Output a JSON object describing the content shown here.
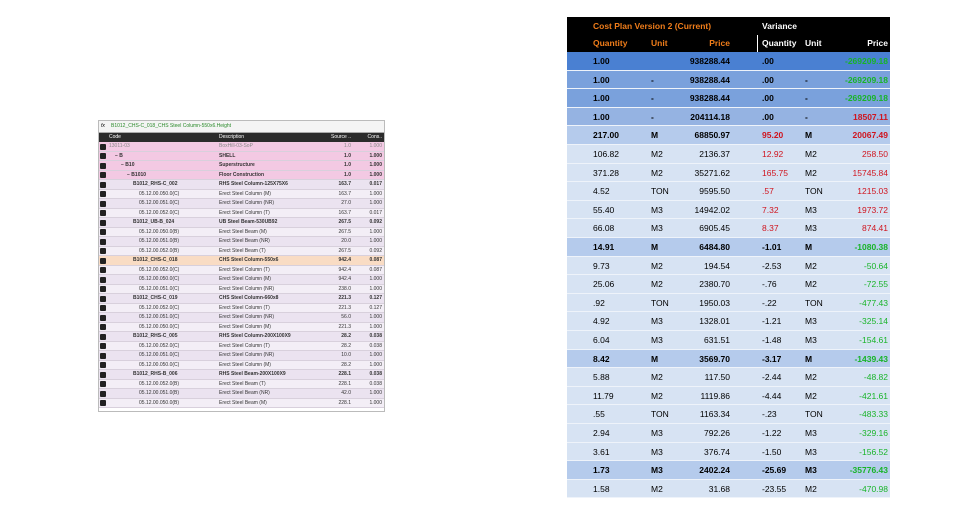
{
  "left_panel": {
    "fx": "fx",
    "formula": "B1012_CHS-C_018_CHS Steel Column-550x6.Height",
    "columns": [
      "Code",
      "Description",
      "Source ..",
      "Cons.."
    ],
    "rows": [
      [
        "13011-03",
        "BoxHill-03-SoP",
        "1.0",
        "1.000"
      ],
      [
        "− B",
        "SHELL",
        "1.0",
        "1.000"
      ],
      [
        "− B10",
        "Superstructure",
        "1.0",
        "1.000"
      ],
      [
        "− B1010",
        "Floor Construction",
        "1.0",
        "1.000"
      ],
      [
        "B1012_RHS-C_002",
        "RHS Steel Column-125X75X6",
        "163.7",
        "0.017"
      ],
      [
        "05.12.00.050.0(C)",
        "Erect Steel Column (M)",
        "163.7",
        "1.000"
      ],
      [
        "05.12.00.051.0(C)",
        "Erect Steel Column (NR)",
        "27.0",
        "1.000"
      ],
      [
        "05.12.00.052.0(C)",
        "Erect Steel Column (T)",
        "163.7",
        "0.017"
      ],
      [
        "B1012_UB-B_024",
        "UB Steel Beam-530UB92",
        "267.5",
        "0.092"
      ],
      [
        "05.12.00.050.0(B)",
        "Erect Steel Beam (M)",
        "267.5",
        "1.000"
      ],
      [
        "05.12.00.051.0(B)",
        "Erect Steel Beam (NR)",
        "20.0",
        "1.000"
      ],
      [
        "05.12.00.052.0(B)",
        "Erect Steel Beam (T)",
        "267.5",
        "0.092"
      ],
      [
        "B1012_CHS-C_018",
        "CHS Steel Column-550x6",
        "942.4",
        "0.087"
      ],
      [
        "05.12.00.052.0(C)",
        "Erect Steel Column (T)",
        "942.4",
        "0.087"
      ],
      [
        "05.12.00.050.0(C)",
        "Erect Steel Column (M)",
        "942.4",
        "1.000"
      ],
      [
        "05.12.00.051.0(C)",
        "Erect Steel Column (NR)",
        "238.0",
        "1.000"
      ],
      [
        "B1012_CHS-C_019",
        "CHS Steel Column-660x8",
        "221.3",
        "0.127"
      ],
      [
        "05.12.00.052.0(C)",
        "Erect Steel Column (T)",
        "221.3",
        "0.127"
      ],
      [
        "05.12.00.051.0(C)",
        "Erect Steel Column (NR)",
        "56.0",
        "1.000"
      ],
      [
        "05.12.00.050.0(C)",
        "Erect Steel Column (M)",
        "221.3",
        "1.000"
      ],
      [
        "B1012_RHS-C_005",
        "RHS Steel Column-200X100X9",
        "28.2",
        "0.038"
      ],
      [
        "05.12.00.052.0(C)",
        "Erect Steel Column (T)",
        "28.2",
        "0.038"
      ],
      [
        "05.12.00.051.0(C)",
        "Erect Steel Column (NR)",
        "10.0",
        "1.000"
      ],
      [
        "05.12.00.050.0(C)",
        "Erect Steel Column (M)",
        "28.2",
        "1.000"
      ],
      [
        "B1012_RHS-B_006",
        "RHS Steel Beam-200X100X9",
        "228.1",
        "0.038"
      ],
      [
        "05.12.00.052.0(B)",
        "Erect Steel Beam (T)",
        "228.1",
        "0.038"
      ],
      [
        "05.12.00.051.0(B)",
        "Erect Steel Beam (NR)",
        "42.0",
        "1.000"
      ],
      [
        "05.12.00.050.0(B)",
        "Erect Steel Beam (M)",
        "228.1",
        "1.000"
      ]
    ]
  },
  "right_table": {
    "group_headers": [
      "Cost Plan Version 2 (Current)",
      "Variance"
    ],
    "columns": [
      "Quantity",
      "Unit",
      "Price",
      "Quantity",
      "Unit",
      "Price"
    ],
    "rows": [
      [
        "1.00",
        null,
        "938288.44",
        ".00",
        null,
        "-269209.18"
      ],
      [
        "1.00",
        "-",
        "938288.44",
        ".00",
        "-",
        "-269209.18"
      ],
      [
        "1.00",
        "-",
        "938288.44",
        ".00",
        "-",
        "-269209.18"
      ],
      [
        "1.00",
        "-",
        "204114.18",
        ".00",
        "-",
        "18507.11"
      ],
      [
        "217.00",
        "M",
        "68850.97",
        "95.20",
        "M",
        "20067.49"
      ],
      [
        "106.82",
        "M2",
        "2136.37",
        "12.92",
        "M2",
        "258.50"
      ],
      [
        "371.28",
        "M2",
        "35271.62",
        "165.75",
        "M2",
        "15745.84"
      ],
      [
        "4.52",
        "TON",
        "9595.50",
        ".57",
        "TON",
        "1215.03"
      ],
      [
        "55.40",
        "M3",
        "14942.02",
        "7.32",
        "M3",
        "1973.72"
      ],
      [
        "66.08",
        "M3",
        "6905.45",
        "8.37",
        "M3",
        "874.41"
      ],
      [
        "14.91",
        "M",
        "6484.80",
        "-1.01",
        "M",
        "-1080.38"
      ],
      [
        "9.73",
        "M2",
        "194.54",
        "-2.53",
        "M2",
        "-50.64"
      ],
      [
        "25.06",
        "M2",
        "2380.70",
        "-.76",
        "M2",
        "-72.55"
      ],
      [
        ".92",
        "TON",
        "1950.03",
        "-.22",
        "TON",
        "-477.43"
      ],
      [
        "4.92",
        "M3",
        "1328.01",
        "-1.21",
        "M3",
        "-325.14"
      ],
      [
        "6.04",
        "M3",
        "631.51",
        "-1.48",
        "M3",
        "-154.61"
      ],
      [
        "8.42",
        "M",
        "3569.70",
        "-3.17",
        "M",
        "-1439.43"
      ],
      [
        "5.88",
        "M2",
        "117.50",
        "-2.44",
        "M2",
        "-48.82"
      ],
      [
        "11.79",
        "M2",
        "1119.86",
        "-4.44",
        "M2",
        "-421.61"
      ],
      [
        ".55",
        "TON",
        "1163.34",
        "-.23",
        "TON",
        "-483.33"
      ],
      [
        "2.94",
        "M3",
        "792.26",
        "-1.22",
        "M3",
        "-329.16"
      ],
      [
        "3.61",
        "M3",
        "376.74",
        "-1.50",
        "M3",
        "-156.52"
      ],
      [
        "1.73",
        "M3",
        "2402.24",
        "-25.69",
        "M3",
        "-35776.43"
      ],
      [
        "1.58",
        "M2",
        "31.68",
        "-23.55",
        "M2",
        "-470.98"
      ]
    ]
  }
}
